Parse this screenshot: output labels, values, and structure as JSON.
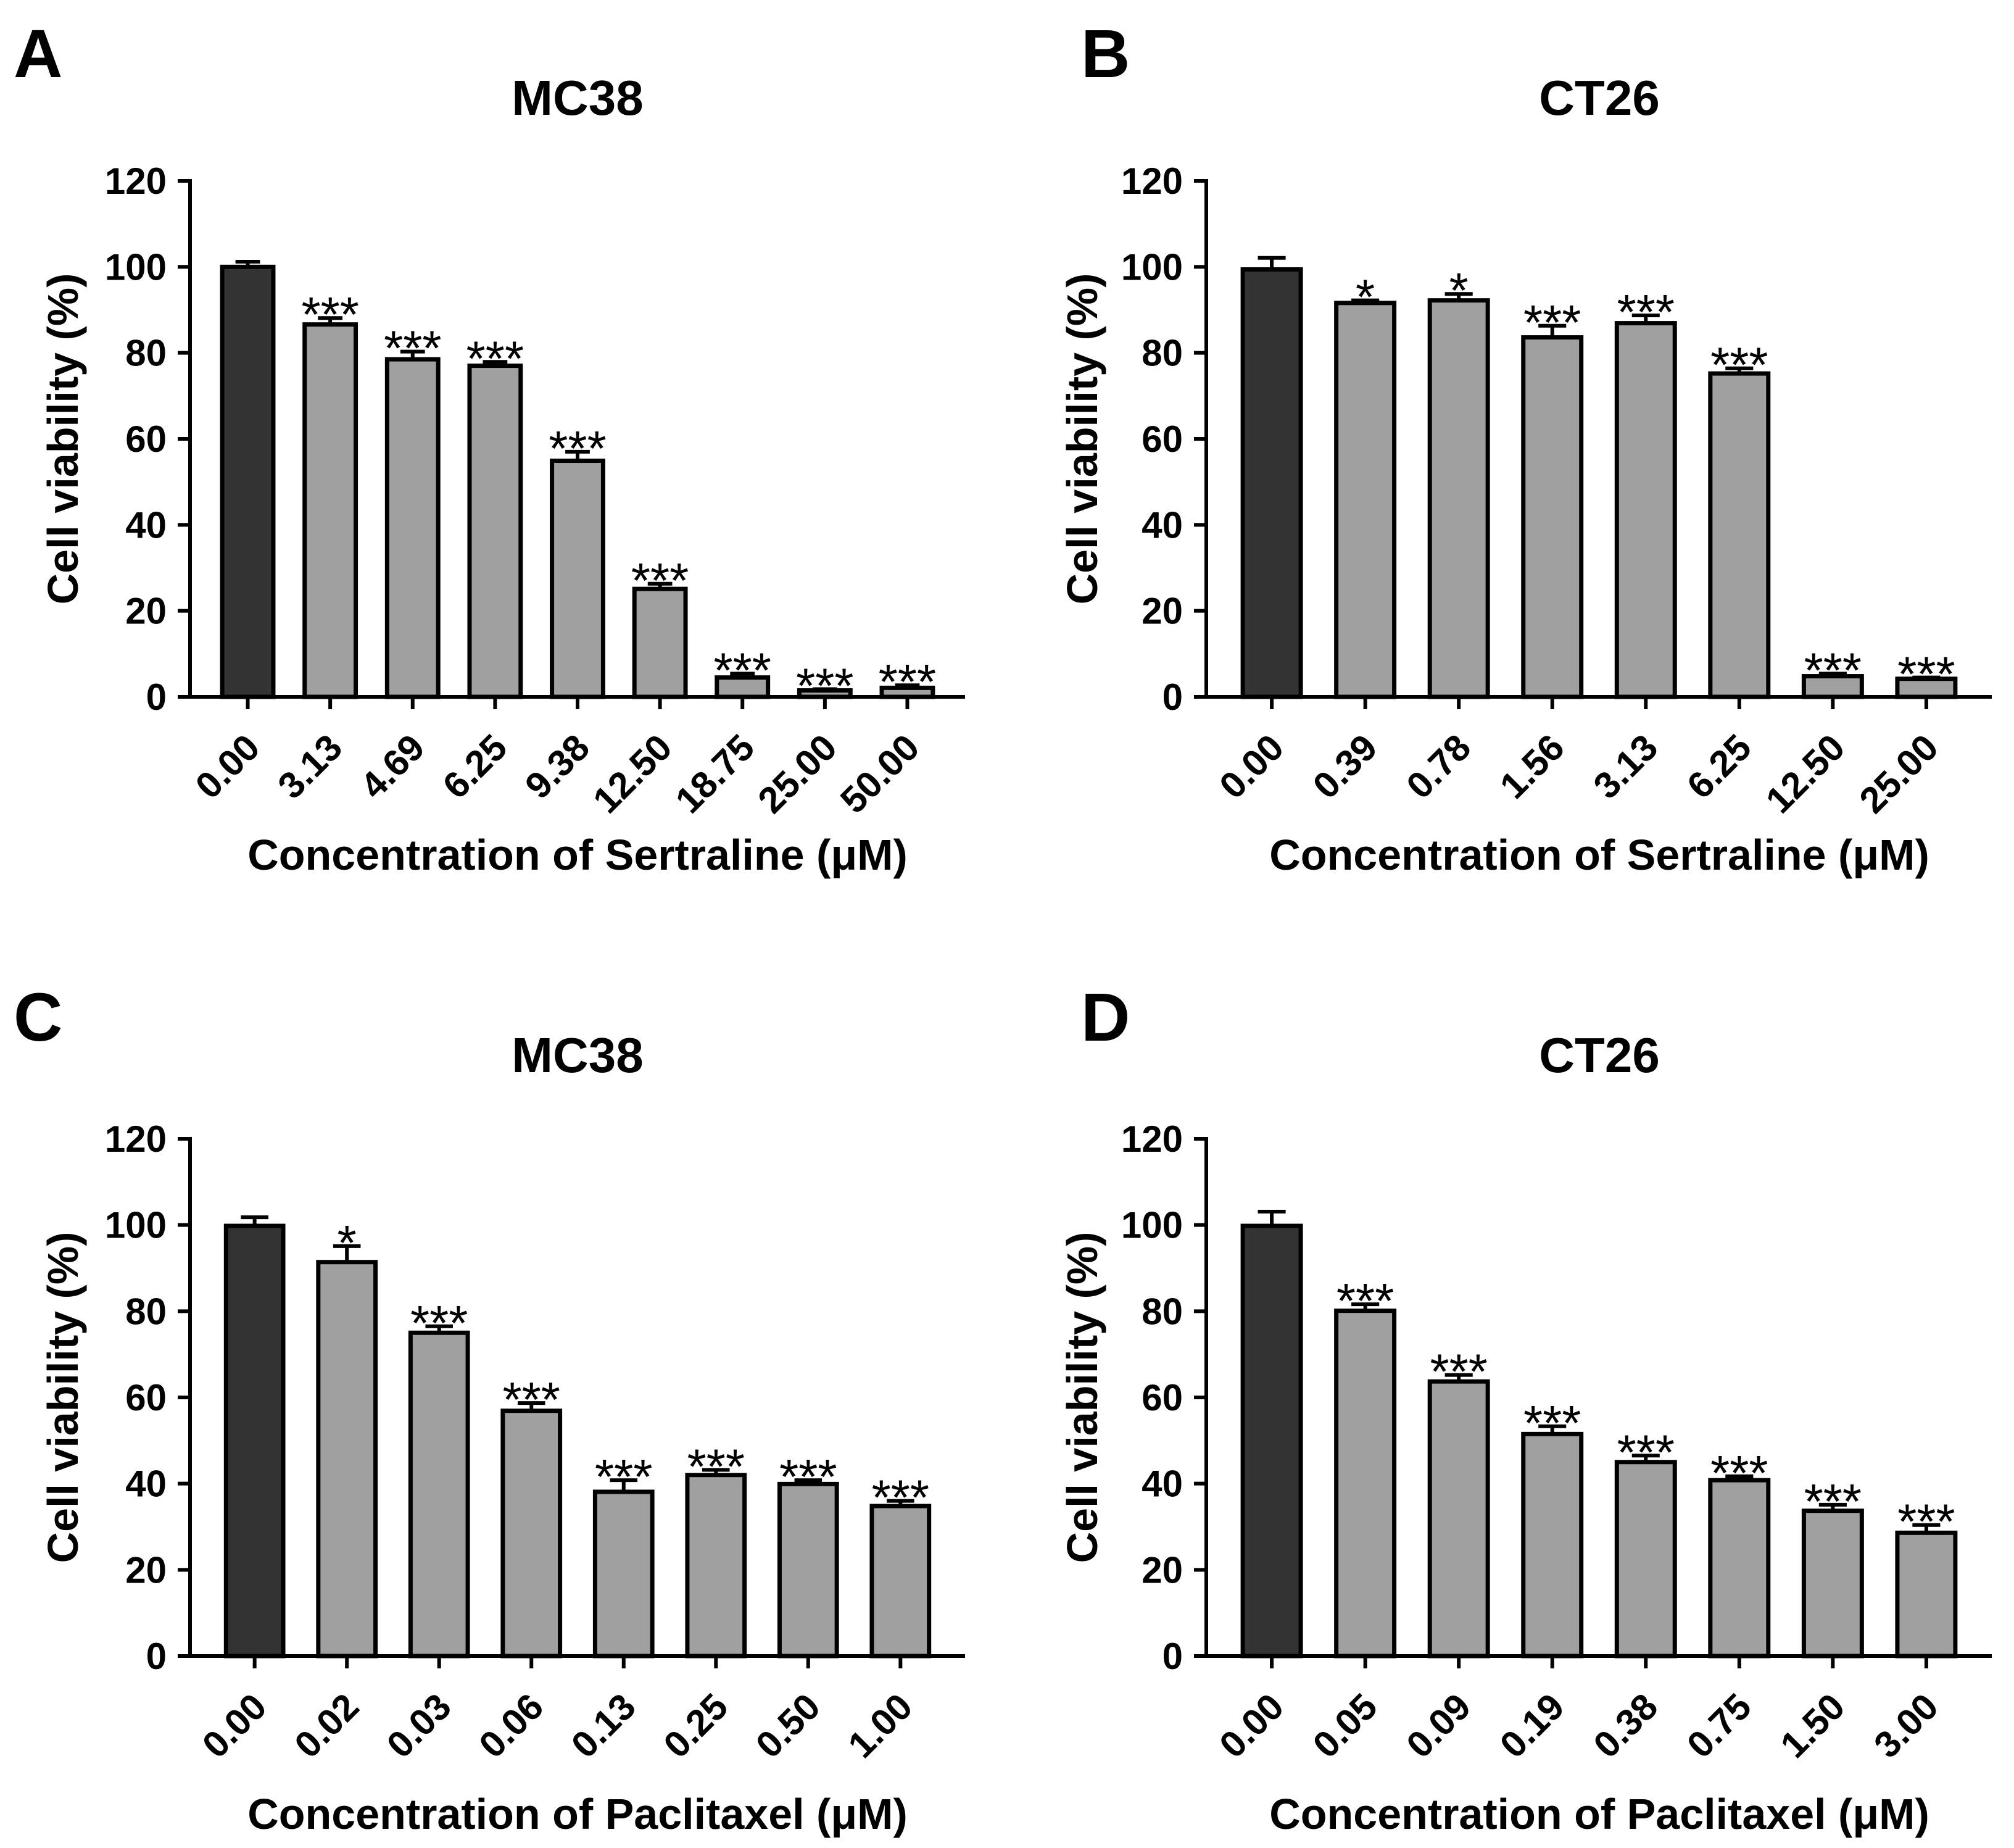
{
  "chart_data": [
    {
      "panel_label": "A",
      "type": "bar",
      "title": "MC38",
      "xlabel": "Concentration of Sertraline (μM)",
      "ylabel": "Cell viability (%)",
      "ylim": [
        0,
        120
      ],
      "yticks": [
        0,
        20,
        40,
        60,
        80,
        100,
        120
      ],
      "grid": false,
      "categories": [
        "0.00",
        "3.13",
        "4.69",
        "6.25",
        "9.38",
        "12.50",
        "18.75",
        "25.00",
        "50.00"
      ],
      "values": [
        100.0,
        86.6,
        78.5,
        77.0,
        54.9,
        25.1,
        4.5,
        1.5,
        2.1
      ],
      "errors": [
        1.2,
        1.5,
        1.8,
        0.9,
        2.1,
        1.2,
        0.9,
        0.3,
        0.6
      ],
      "significance": [
        "",
        "***",
        "***",
        "***",
        "***",
        "***",
        "***",
        "***",
        "***"
      ],
      "colors": {
        "control_fill": "#333333",
        "treatment_fill": "#a0a0a0",
        "outline": "#000000"
      }
    },
    {
      "panel_label": "B",
      "type": "bar",
      "title": "CT26",
      "xlabel": "Concentration of Sertraline (μM)",
      "ylabel": "Cell viability (%)",
      "ylim": [
        0,
        120
      ],
      "yticks": [
        0,
        20,
        40,
        60,
        80,
        100,
        120
      ],
      "grid": false,
      "categories": [
        "0.00",
        "0.39",
        "0.78",
        "1.56",
        "3.13",
        "6.25",
        "12.50",
        "25.00"
      ],
      "values": [
        99.4,
        91.6,
        92.2,
        83.6,
        86.9,
        75.2,
        4.8,
        4.2
      ],
      "errors": [
        2.7,
        0.6,
        1.5,
        2.7,
        1.8,
        1.2,
        0.6,
        0.3
      ],
      "significance": [
        "",
        "*",
        "*",
        "***",
        "***",
        "***",
        "***",
        "***"
      ],
      "colors": {
        "control_fill": "#333333",
        "treatment_fill": "#a0a0a0",
        "outline": "#000000"
      }
    },
    {
      "panel_label": "C",
      "type": "bar",
      "title": "MC38",
      "xlabel": "Concentration of Paclitaxel (μM)",
      "ylabel": "Cell viability (%)",
      "ylim": [
        0,
        120
      ],
      "yticks": [
        0,
        20,
        40,
        60,
        80,
        100,
        120
      ],
      "grid": false,
      "categories": [
        "0.00",
        "0.02",
        "0.03",
        "0.06",
        "0.13",
        "0.25",
        "0.50",
        "1.00"
      ],
      "values": [
        99.8,
        91.4,
        75.0,
        56.9,
        38.1,
        42.0,
        39.9,
        34.8
      ],
      "errors": [
        2.0,
        3.7,
        1.5,
        1.8,
        2.7,
        1.2,
        0.9,
        1.2
      ],
      "significance": [
        "",
        "*",
        "***",
        "***",
        "***",
        "***",
        "***",
        "***"
      ],
      "colors": {
        "control_fill": "#333333",
        "treatment_fill": "#a0a0a0",
        "outline": "#000000"
      }
    },
    {
      "panel_label": "D",
      "type": "bar",
      "title": "CT26",
      "xlabel": "Concentration of Paclitaxel (μM)",
      "ylabel": "Cell viability (%)",
      "ylim": [
        0,
        120
      ],
      "yticks": [
        0,
        20,
        40,
        60,
        80,
        100,
        120
      ],
      "grid": false,
      "categories": [
        "0.00",
        "0.05",
        "0.09",
        "0.19",
        "0.38",
        "0.75",
        "1.50",
        "3.00"
      ],
      "values": [
        99.8,
        80.1,
        63.7,
        51.5,
        45.0,
        40.8,
        33.7,
        28.6
      ],
      "errors": [
        3.3,
        1.5,
        1.5,
        1.8,
        1.5,
        0.9,
        1.4,
        1.8
      ],
      "significance": [
        "",
        "***",
        "***",
        "***",
        "***",
        "***",
        "***",
        "***"
      ],
      "colors": {
        "control_fill": "#333333",
        "treatment_fill": "#a0a0a0",
        "outline": "#000000"
      }
    }
  ]
}
